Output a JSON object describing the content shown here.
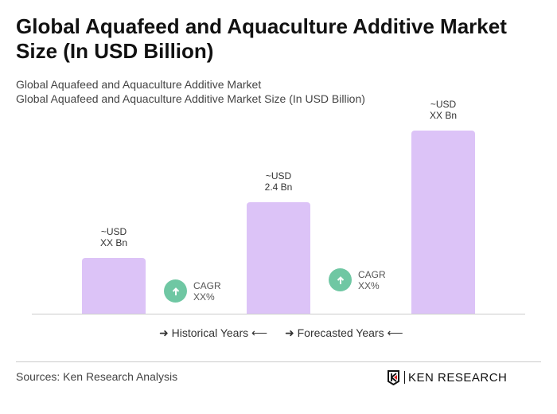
{
  "title": "Global Aquafeed and Aquaculture Additive Market Size (In USD Billion)",
  "subtitle1": "Global Aquafeed and Aquaculture Additive Market",
  "subtitle2": "Global Aquafeed and Aquaculture Additive Market Size (In USD Billion)",
  "chart_data": {
    "type": "bar",
    "categories": [
      "",
      "",
      ""
    ],
    "values": [
      null,
      2.4,
      null
    ],
    "data_labels": [
      [
        "~USD",
        "XX Bn"
      ],
      [
        "~USD",
        "2.4 Bn"
      ],
      [
        "~USD",
        "XX Bn"
      ]
    ],
    "bar_color": "#dcc3f7",
    "annotations": [
      {
        "line1": "CAGR",
        "line2": "XX%"
      },
      {
        "line1": "CAGR",
        "line2": "XX%"
      }
    ],
    "legend": [
      "Historical Years",
      "Forecasted Years"
    ],
    "grid": false
  },
  "sources": "Sources: Ken Research Analysis",
  "logo_text": "KEN RESEARCH",
  "colors": {
    "bar": "#dcc3f7",
    "cagr": "#6fc7a3"
  }
}
